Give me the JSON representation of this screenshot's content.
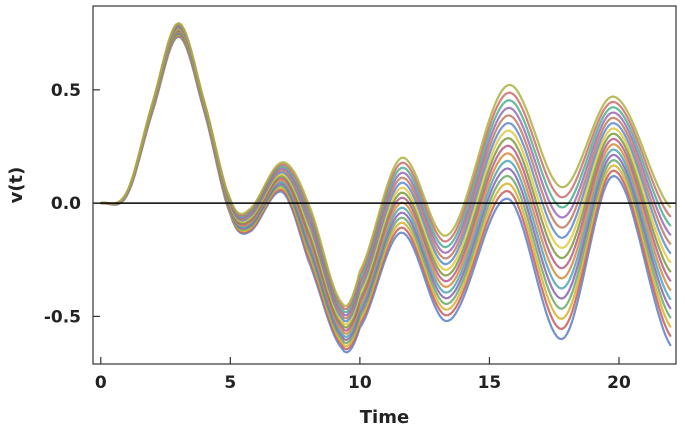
{
  "chart_data": {
    "type": "line",
    "title": "",
    "xlabel": "Time",
    "ylabel": "v(t)",
    "xlim": [
      -0.3,
      22.2
    ],
    "ylim": [
      -0.71,
      0.87
    ],
    "x_ticks": [
      0,
      5,
      10,
      15,
      20
    ],
    "x_tick_labels": [
      "0",
      "5",
      "10",
      "15",
      "20"
    ],
    "y_ticks": [
      -0.5,
      0.0,
      0.5
    ],
    "y_tick_labels": [
      "-0.5",
      "0.0",
      "0.5"
    ],
    "reference_line_y": 0,
    "grid": false,
    "legend": "none",
    "n_series": 16,
    "series_note_values": "Approximate values read from a family of 16 overlapping trajectories (shown via upper/lower envelopes of the bundle).",
    "envelope": {
      "x": [
        0,
        1,
        2,
        3,
        4,
        5,
        5.7,
        7,
        8,
        9.3,
        10,
        11.6,
        13.4,
        15.7,
        17.8,
        19.8,
        22
      ],
      "upper": [
        0,
        0.05,
        0.45,
        0.8,
        0.45,
        0.02,
        -0.03,
        0.18,
        0.0,
        -0.44,
        -0.3,
        0.2,
        -0.14,
        0.52,
        0.07,
        0.47,
        -0.02
      ],
      "lower": [
        0,
        0.03,
        0.4,
        0.73,
        0.4,
        -0.05,
        -0.13,
        0.05,
        -0.25,
        -0.64,
        -0.55,
        -0.13,
        -0.52,
        0.02,
        -0.6,
        0.12,
        -0.63
      ]
    },
    "colors": [
      "#5b7fc7",
      "#c85a5a",
      "#d8b02a",
      "#6aa86a",
      "#8a62b0",
      "#4aa6b5",
      "#d88a3a",
      "#b55a8a",
      "#7a9a3a",
      "#e0c840",
      "#5a8ad0",
      "#c07a5a",
      "#9a6ab8",
      "#48b088",
      "#d06a6a",
      "#aab040"
    ]
  }
}
